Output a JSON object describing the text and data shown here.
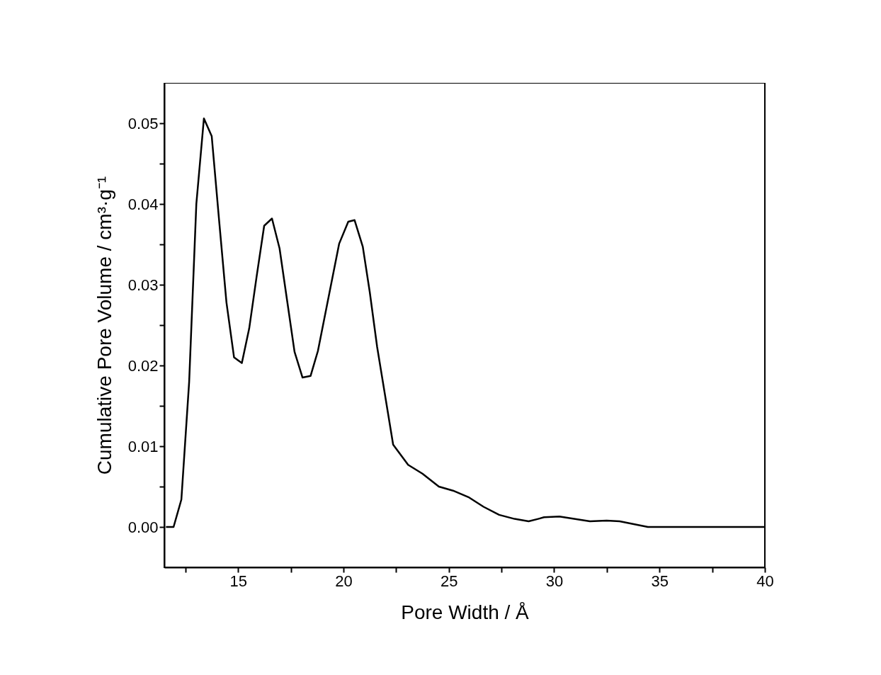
{
  "chart_data": {
    "type": "line",
    "xlabel": "Pore Width / Å",
    "ylabel": "Cumulative Pore Volume / cm³·g⁻¹",
    "x": [
      11.58,
      11.94,
      12.31,
      12.68,
      13.02,
      13.38,
      13.75,
      14.1,
      14.45,
      14.81,
      15.18,
      15.53,
      15.88,
      16.24,
      16.61,
      16.97,
      17.33,
      17.68,
      18.06,
      18.44,
      18.79,
      19.8,
      20.23,
      20.53,
      20.92,
      21.25,
      21.6,
      22.36,
      23.07,
      23.75,
      24.53,
      25.2,
      25.93,
      26.65,
      27.39,
      28.12,
      28.79,
      29.24,
      29.52,
      30.25,
      31.7,
      32.49,
      33.11,
      34.45,
      40
    ],
    "series": [
      {
        "color": "#000000",
        "values": [
          0,
          0,
          0.0034,
          0.018,
          0.04,
          0.0506,
          0.0484,
          0.038,
          0.0278,
          0.021,
          0.0203,
          0.0246,
          0.031,
          0.0373,
          0.0382,
          0.0345,
          0.028,
          0.0217,
          0.0185,
          0.0187,
          0.0218,
          0.0351,
          0.0378,
          0.038,
          0.0347,
          0.0291,
          0.0223,
          0.0102,
          0.0077,
          0.0066,
          0.005,
          0.0045,
          0.0037,
          0.0025,
          0.0015,
          0.001,
          0.0007,
          0.001,
          0.0012,
          0.0013,
          0.0007,
          0.0008,
          0.0007,
          0,
          0
        ]
      }
    ],
    "xlim": [
      11.5,
      40
    ],
    "xticks": [
      {
        "value": 12.5,
        "label": null
      },
      15,
      {
        "value": 17.5,
        "label": null
      },
      20,
      {
        "value": 22.5,
        "label": null
      },
      25,
      {
        "value": 27.5,
        "label": null
      },
      30,
      {
        "value": 32.5,
        "label": null
      },
      35,
      {
        "value": 37.5,
        "label": null
      },
      40
    ],
    "ylim": [
      -0.005,
      0.055
    ],
    "yticks": [
      {
        "value": 0,
        "label": "0.00"
      },
      {
        "value": 0.005,
        "label": null
      },
      {
        "value": 0.01,
        "label": "0.01"
      },
      {
        "value": 0.015,
        "label": null
      },
      {
        "value": 0.02,
        "label": "0.02"
      },
      {
        "value": 0.025,
        "label": null
      },
      {
        "value": 0.03,
        "label": "0.03"
      },
      {
        "value": 0.035,
        "label": null
      },
      {
        "value": 0.04,
        "label": "0.04"
      },
      {
        "value": 0.045,
        "label": null
      },
      {
        "value": 0.05,
        "label": "0.05"
      }
    ],
    "grid": false,
    "marker": "none",
    "line_style": "solid"
  }
}
